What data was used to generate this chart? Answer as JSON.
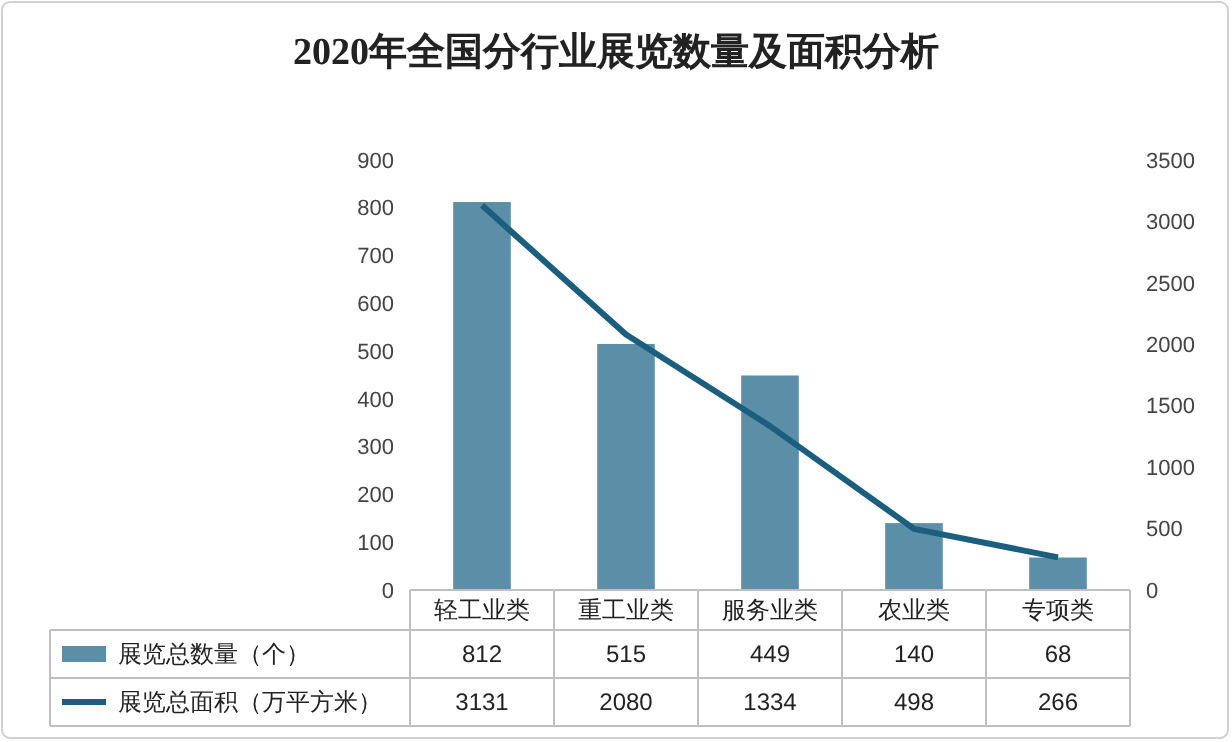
{
  "chart_data": {
    "type": "bar",
    "title": "2020年全国分行业展览数量及面积分析",
    "categories": [
      "轻工业类",
      "重工业类",
      "服务业类",
      "农业类",
      "专项类"
    ],
    "series": [
      {
        "name": "展览总数量（个）",
        "color": "#5b8fa8",
        "values": [
          812,
          515,
          449,
          140,
          68
        ]
      },
      {
        "name": "展览总面积（万平方米）",
        "type": "line",
        "axis": "y2",
        "color": "#1b5e7e",
        "values": [
          3131,
          2080,
          1334,
          498,
          266
        ]
      }
    ],
    "ylim": [
      0,
      900
    ],
    "yticks": [
      0,
      100,
      200,
      300,
      400,
      500,
      600,
      700,
      800,
      900
    ],
    "y2lim": [
      0,
      3500
    ],
    "y2ticks": [
      0,
      500,
      1000,
      1500,
      2000,
      2500,
      3000,
      3500
    ],
    "legend": "bottom",
    "data_labels": true,
    "marker": "none",
    "line_style": "solid"
  }
}
